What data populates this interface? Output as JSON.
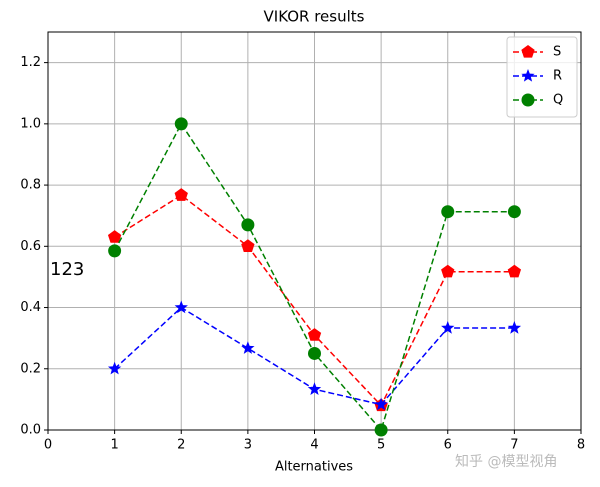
{
  "chart_data": {
    "type": "line",
    "title": "VIKOR results",
    "x_label": "Alternatives",
    "x": [
      1,
      2,
      3,
      4,
      5,
      6,
      7
    ],
    "series": [
      {
        "name": "S",
        "color": "#ff0000",
        "marker": "pentagon",
        "values": [
          0.63,
          0.767,
          0.6,
          0.31,
          0.08,
          0.517,
          0.517
        ]
      },
      {
        "name": "R",
        "color": "#0000ff",
        "marker": "star",
        "values": [
          0.2,
          0.4,
          0.267,
          0.133,
          0.083,
          0.333,
          0.333
        ]
      },
      {
        "name": "Q",
        "color": "#008000",
        "marker": "circle",
        "values": [
          0.585,
          1.0,
          0.67,
          0.25,
          0.0,
          0.713,
          0.713
        ]
      }
    ],
    "xlim": [
      0,
      8
    ],
    "xticks": [
      0,
      1,
      2,
      3,
      4,
      5,
      6,
      7,
      8
    ],
    "ylim": [
      0,
      1.3
    ],
    "yticks": [
      {
        "value": 0,
        "label": "0.0"
      },
      0.2,
      0.4,
      0.6,
      0.8,
      {
        "value": 1,
        "label": "1.0"
      },
      1.2
    ],
    "grid": true,
    "legend": "upper right",
    "line_style": "dashed",
    "annotation": "123",
    "watermark": "知乎 @模型视角"
  }
}
